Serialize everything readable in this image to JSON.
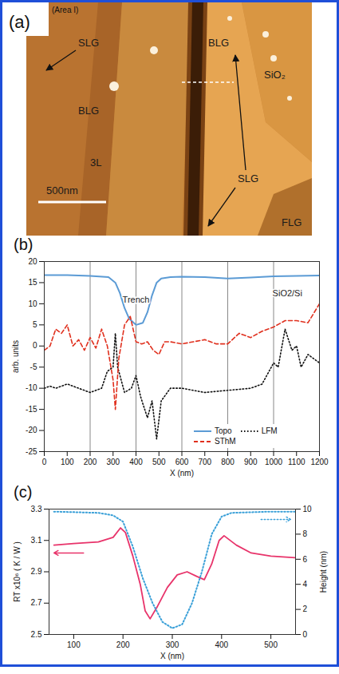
{
  "chart_data": [
    {
      "type": "image",
      "panel": "(a)",
      "subtitle": "(Area I)",
      "labels": [
        "SLG",
        "BLG",
        "SiO₂",
        "BLG",
        "3L",
        "SLG",
        "FLG"
      ],
      "scale_bar": "500nm"
    },
    {
      "type": "line",
      "panel": "(b)",
      "x_label": "X (nm)",
      "y_label": "arb. units",
      "xlim": [
        0,
        1200
      ],
      "xticks": [
        0,
        100,
        200,
        300,
        400,
        500,
        600,
        700,
        800,
        900,
        1000,
        1100,
        1200
      ],
      "ylim": [
        -25,
        20
      ],
      "yticks": [
        -25,
        -20,
        -15,
        -10,
        -5,
        0,
        5,
        10,
        15,
        20
      ],
      "grid": "x",
      "legend": "lower right",
      "annotations": [
        {
          "text": "Trench",
          "x": 400,
          "y": 11
        },
        {
          "text": "SiO2/Si",
          "x": 1060,
          "y": 12.5
        }
      ],
      "series": [
        {
          "name": "Topo",
          "color": "#5b9bd5",
          "line_style": "solid",
          "x": [
            0,
            100,
            200,
            280,
            310,
            330,
            350,
            370,
            400,
            430,
            450,
            470,
            490,
            510,
            550,
            600,
            700,
            800,
            900,
            1000,
            1100,
            1200
          ],
          "values": [
            16.8,
            16.8,
            16.6,
            16.3,
            15,
            12.5,
            9,
            6.5,
            5,
            5.5,
            8,
            12,
            15,
            16,
            16.3,
            16.4,
            16.3,
            16,
            16.2,
            16.5,
            16.6,
            16.7
          ]
        },
        {
          "name": "LFM",
          "color": "#111111",
          "line_style": "dotted",
          "x": [
            0,
            25,
            50,
            100,
            150,
            200,
            250,
            275,
            300,
            310,
            320,
            350,
            380,
            400,
            420,
            450,
            470,
            490,
            510,
            550,
            600,
            700,
            800,
            900,
            950,
            1000,
            1020,
            1050,
            1080,
            1100,
            1120,
            1150,
            1200
          ],
          "values": [
            -10,
            -9.5,
            -10,
            -9,
            -10,
            -11,
            -10,
            -6,
            -5,
            3,
            -5,
            -11,
            -10,
            -7,
            -12,
            -17,
            -13,
            -22,
            -13,
            -10,
            -10,
            -11,
            -10.5,
            -10,
            -9,
            -4,
            -5,
            4,
            -1,
            0,
            -5,
            -2,
            -4
          ]
        },
        {
          "name": "SThM",
          "color": "#e0301e",
          "line_style": "dashed",
          "x": [
            0,
            25,
            50,
            75,
            100,
            125,
            150,
            175,
            200,
            225,
            250,
            275,
            300,
            310,
            325,
            350,
            375,
            400,
            425,
            450,
            475,
            500,
            525,
            550,
            600,
            650,
            700,
            750,
            800,
            850,
            900,
            950,
            1000,
            1050,
            1100,
            1150,
            1200
          ],
          "values": [
            -1,
            0,
            4,
            3,
            5,
            0,
            1.5,
            -1,
            2,
            -0.5,
            4,
            0,
            -8,
            -15,
            -3,
            5,
            7,
            1,
            0.5,
            1,
            -1,
            -2,
            1,
            1,
            0.5,
            1,
            1.5,
            0.5,
            0.5,
            3,
            2,
            3.5,
            4.5,
            6,
            6,
            5.5,
            10
          ]
        }
      ]
    },
    {
      "type": "line",
      "panel": "(c)",
      "x_label": "X (nm)",
      "y_label": "RT x10⁶ ( K / W )",
      "y2_label": "Height (nm)",
      "xlim": [
        50,
        550
      ],
      "xticks": [
        100,
        200,
        300,
        400,
        500
      ],
      "ylim": [
        2.5,
        3.3
      ],
      "yticks": [
        2.5,
        2.7,
        2.9,
        3.1,
        3.3
      ],
      "y2lim": [
        0,
        10
      ],
      "y2ticks": [
        0,
        2,
        4,
        6,
        8,
        10
      ],
      "series": [
        {
          "color": "#e8336a",
          "line_style": "solid",
          "x": [
            60,
            100,
            150,
            180,
            195,
            205,
            220,
            235,
            245,
            255,
            270,
            290,
            310,
            330,
            350,
            365,
            380,
            395,
            405,
            430,
            460,
            500,
            550
          ],
          "values": [
            3.07,
            3.08,
            3.09,
            3.12,
            3.18,
            3.15,
            3.0,
            2.82,
            2.65,
            2.6,
            2.68,
            2.8,
            2.88,
            2.9,
            2.87,
            2.85,
            2.95,
            3.1,
            3.13,
            3.07,
            3.02,
            3.0,
            2.99
          ]
        },
        {
          "axis": "y2",
          "color": "#3aa0d8",
          "line_style": "dotted",
          "x": [
            60,
            150,
            180,
            200,
            220,
            240,
            260,
            280,
            300,
            320,
            340,
            360,
            380,
            400,
            420,
            500,
            550
          ],
          "values": [
            9.8,
            9.7,
            9.5,
            9,
            7,
            4.5,
            2.5,
            1,
            0.5,
            0.8,
            2.5,
            5,
            8,
            9.4,
            9.7,
            9.8,
            9.8
          ]
        }
      ]
    }
  ]
}
